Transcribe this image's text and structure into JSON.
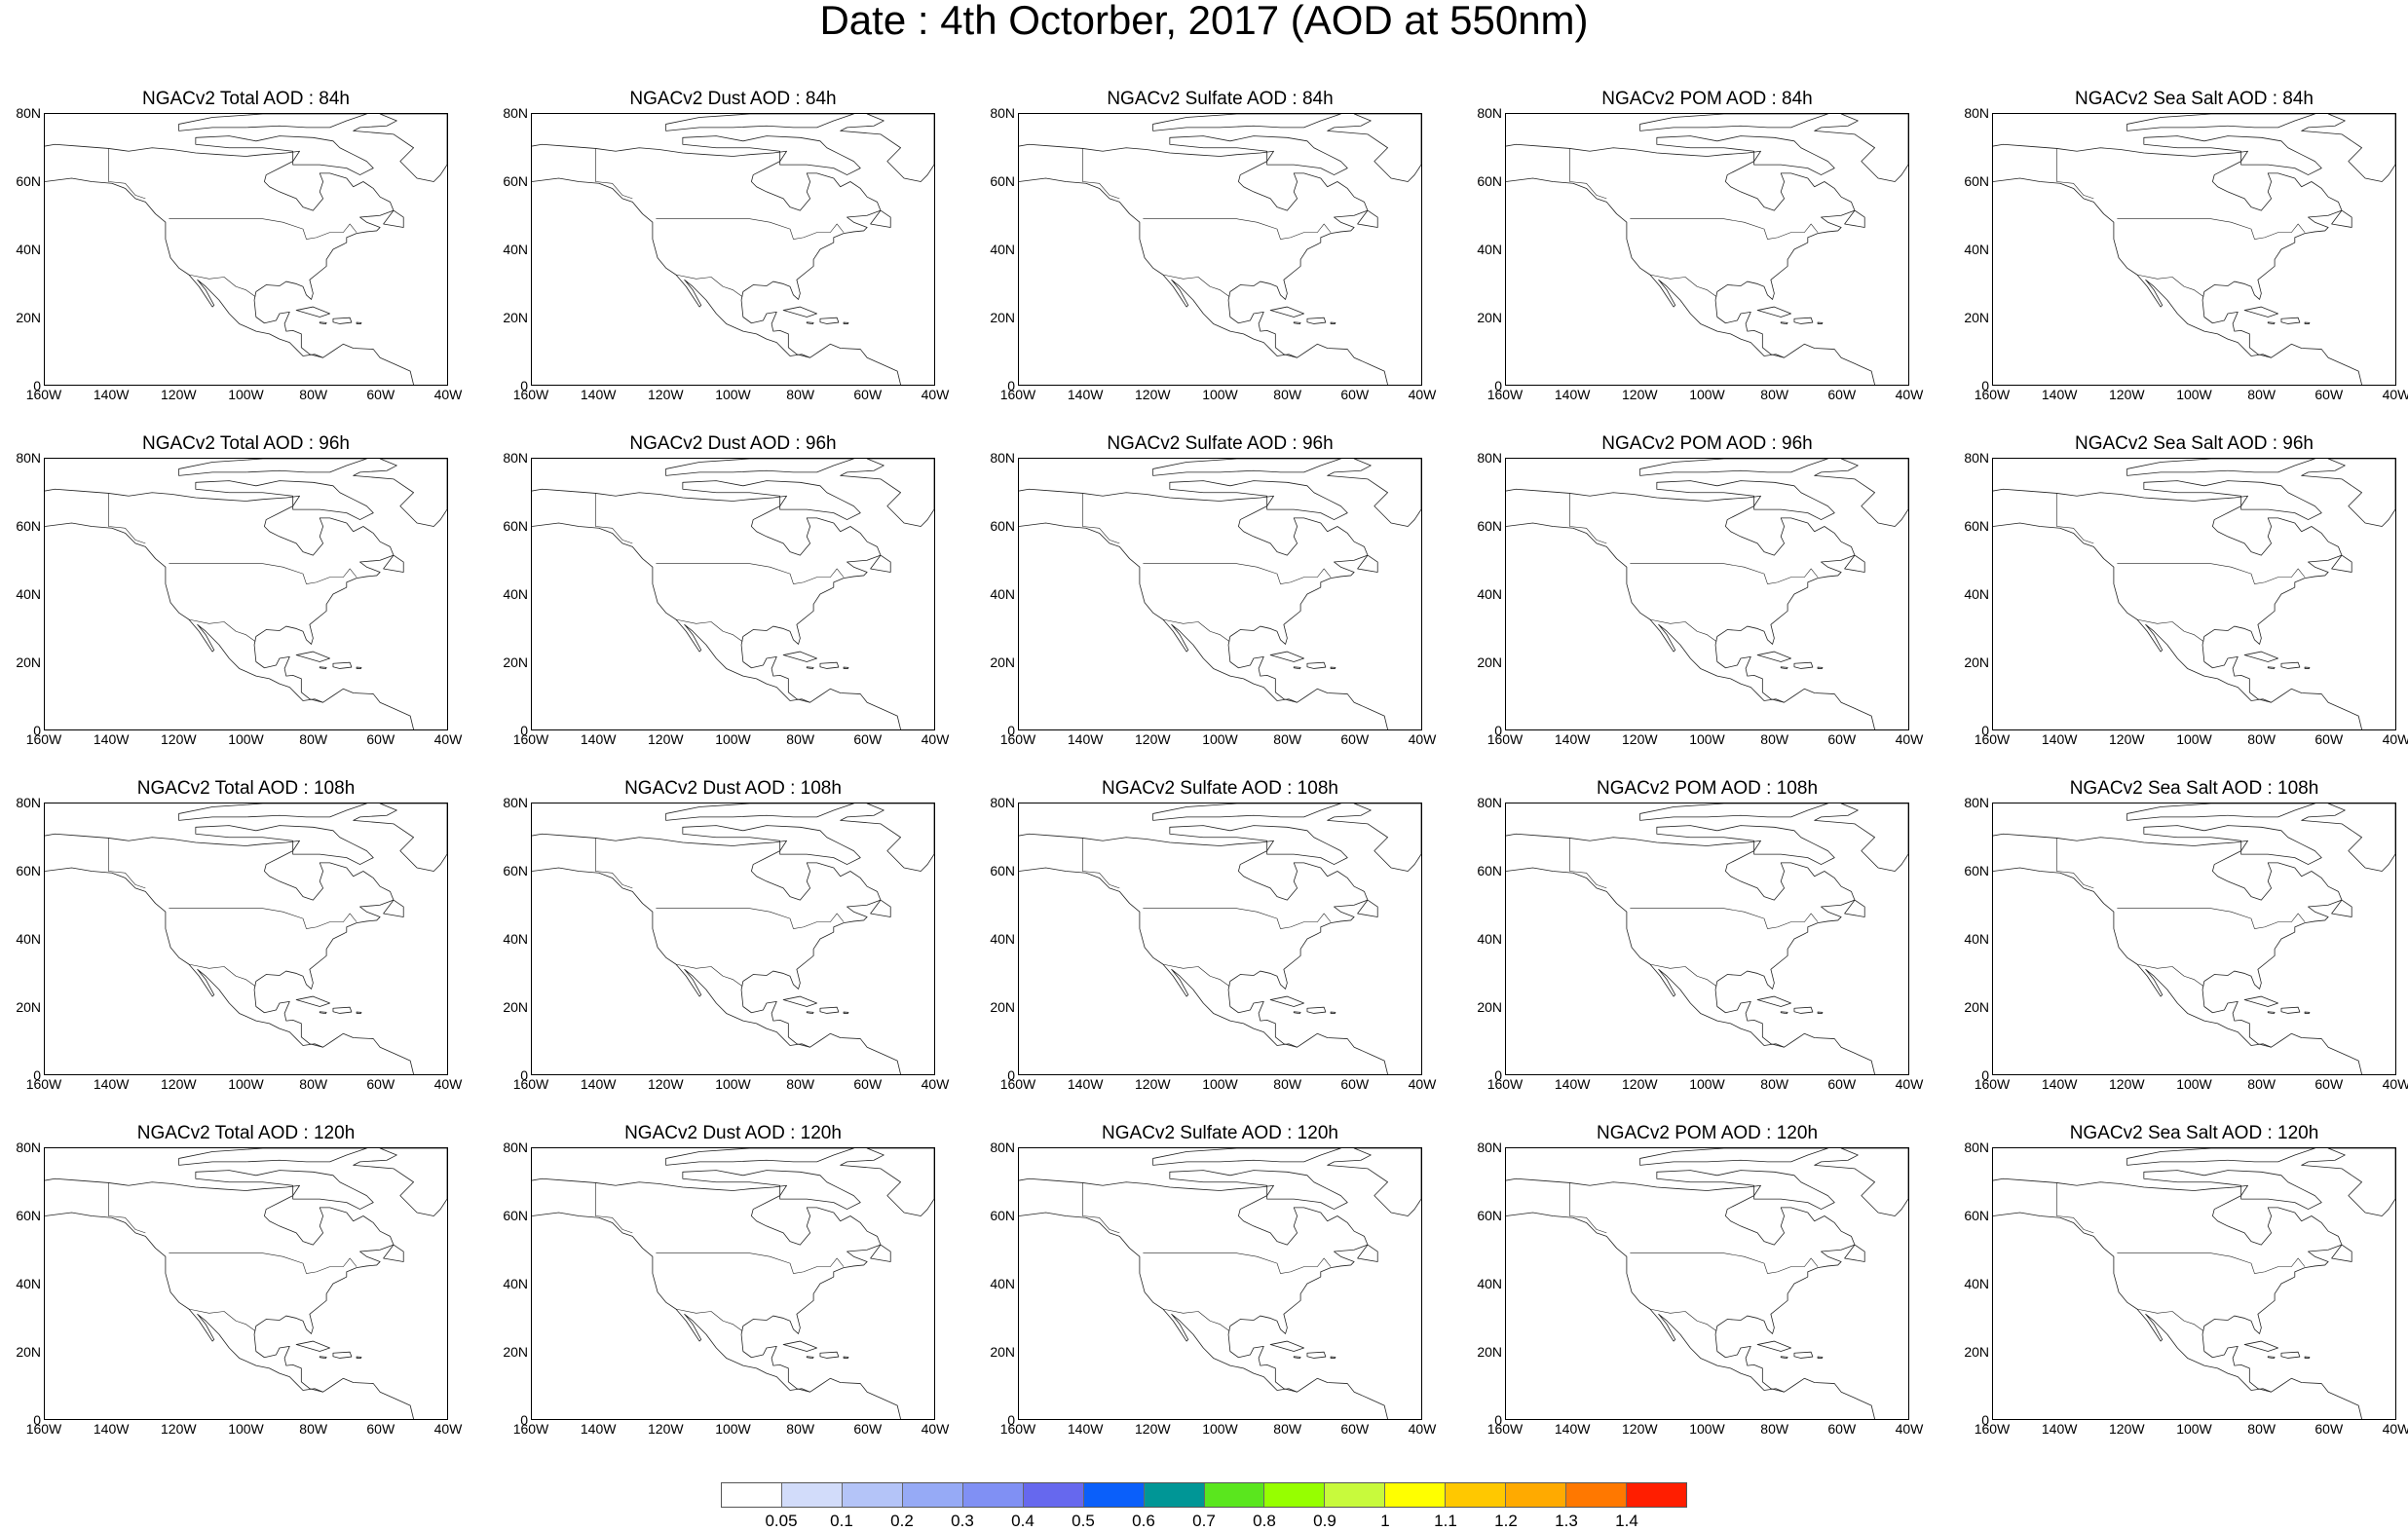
{
  "title": "Date : 4th Octorber, 2017 (AOD at 550nm)",
  "y_ticks": [
    "80N",
    "60N",
    "40N",
    "20N",
    "0"
  ],
  "x_ticks": [
    "160W",
    "140W",
    "120W",
    "100W",
    "80W",
    "60W",
    "40W"
  ],
  "panels": [
    [
      "NGACv2 Total AOD : 84h",
      "NGACv2 Dust AOD : 84h",
      "NGACv2 Sulfate AOD : 84h",
      "NGACv2 POM AOD : 84h",
      "NGACv2 Sea Salt AOD : 84h"
    ],
    [
      "NGACv2 Total AOD : 96h",
      "NGACv2 Dust AOD : 96h",
      "NGACv2 Sulfate AOD : 96h",
      "NGACv2 POM AOD : 96h",
      "NGACv2 Sea Salt AOD : 96h"
    ],
    [
      "NGACv2 Total AOD : 108h",
      "NGACv2 Dust AOD : 108h",
      "NGACv2 Sulfate AOD : 108h",
      "NGACv2 POM AOD : 108h",
      "NGACv2 Sea Salt AOD : 108h"
    ],
    [
      "NGACv2 Total AOD : 120h",
      "NGACv2 Dust AOD : 120h",
      "NGACv2 Sulfate AOD : 120h",
      "NGACv2 POM AOD : 120h",
      "NGACv2 Sea Salt  AOD : 120h"
    ]
  ],
  "colorbar": {
    "labels": [
      "0.05",
      "0.1",
      "0.2",
      "0.3",
      "0.4",
      "0.5",
      "0.6",
      "0.7",
      "0.8",
      "0.9",
      "1",
      "1.1",
      "1.2",
      "1.3",
      "1.4"
    ],
    "colors": [
      "#ffffff",
      "#d2dcfa",
      "#b4c4f8",
      "#96aaf6",
      "#8090f4",
      "#6668ee",
      "#0a5ffa",
      "#009696",
      "#5ae61e",
      "#96ff00",
      "#c8fa3c",
      "#ffff00",
      "#ffc800",
      "#ffaa00",
      "#ff7800",
      "#ff1e00"
    ]
  }
}
